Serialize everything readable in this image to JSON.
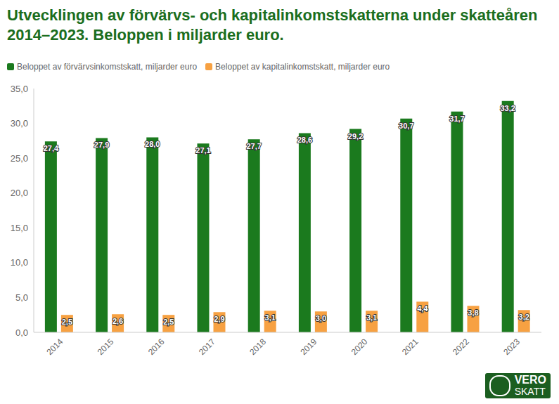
{
  "chart_data": {
    "type": "bar",
    "title": "Utvecklingen av förvärvs- och kapitalinkomstskatterna under skatteåren 2014–2023. Beloppen i miljarder euro.",
    "categories": [
      "2014",
      "2015",
      "2016",
      "2017",
      "2018",
      "2019",
      "2020",
      "2021",
      "2022",
      "2023"
    ],
    "series": [
      {
        "name": "Beloppet av förvärvsinkomstskatt, miljarder euro",
        "color": "#1b7a1e",
        "values": [
          27.4,
          27.9,
          28.0,
          27.1,
          27.7,
          28.6,
          29.2,
          30.7,
          31.7,
          33.2
        ],
        "value_labels": [
          "27,4",
          "27,9",
          "28,0",
          "27,1",
          "27,7",
          "28,6",
          "29,2",
          "30,7",
          "31,7",
          "33,2"
        ]
      },
      {
        "name": "Beloppet av kapitalinkomstskatt, miljarder euro",
        "color": "#f7a142",
        "values": [
          2.5,
          2.6,
          2.5,
          2.9,
          3.1,
          3.0,
          3.1,
          4.4,
          3.8,
          3.2
        ],
        "value_labels": [
          "2,5",
          "2,6",
          "2,5",
          "2,9",
          "3,1",
          "3,0",
          "3,1",
          "4,4",
          "3,8",
          "3,2"
        ]
      }
    ],
    "ylim": [
      0,
      35
    ],
    "yticks": [
      {
        "value": 0,
        "label": "0,0"
      },
      {
        "value": 5,
        "label": "5,0"
      },
      {
        "value": 10,
        "label": "10,0"
      },
      {
        "value": 15,
        "label": "15,0"
      },
      {
        "value": 20,
        "label": "20,0"
      },
      {
        "value": 25,
        "label": "25,0"
      },
      {
        "value": 30,
        "label": "30,0"
      },
      {
        "value": 35,
        "label": "35,0"
      }
    ],
    "grid": false,
    "legend": "top-left",
    "data_labels": true,
    "logo_text": [
      "VERO",
      "SKATT"
    ]
  }
}
